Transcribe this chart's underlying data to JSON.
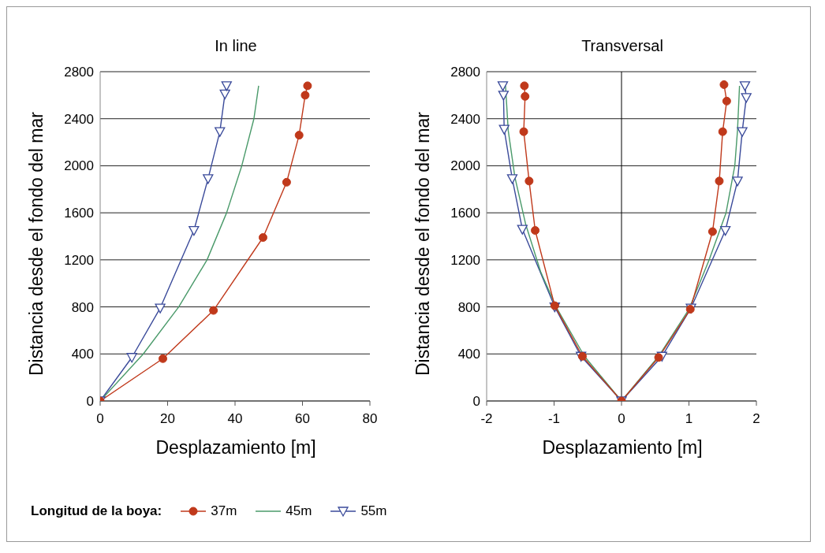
{
  "chart_data": [
    {
      "type": "line",
      "title": "In line",
      "xlabel": "Desplazamiento [m]",
      "ylabel": "Distancia desde el fondo del mar",
      "xlim": [
        0,
        80
      ],
      "xticks": [
        0,
        20,
        40,
        60,
        80
      ],
      "ylim": [
        0,
        2800
      ],
      "yticks": [
        0,
        400,
        800,
        1200,
        1600,
        2000,
        2400,
        2800
      ],
      "grid": "y",
      "legend": "bottom",
      "legend_title": "Longitud de la boya:",
      "line_style": "solid",
      "series": [
        {
          "name": "37m",
          "color": "#c0391b",
          "marker": "circle",
          "x": [
            0,
            18.6,
            33.6,
            48.3,
            55.3,
            59,
            60.8,
            61.5
          ],
          "values": [
            0,
            360,
            770,
            1390,
            1860,
            2260,
            2600,
            2680
          ]
        },
        {
          "name": "45m",
          "color": "#4a9a6a",
          "marker": "none",
          "x": [
            0,
            12.8,
            23.3,
            31.7,
            37.5,
            42,
            45.6,
            47
          ],
          "values": [
            0,
            400,
            800,
            1200,
            1600,
            2000,
            2400,
            2680
          ]
        },
        {
          "name": "55m",
          "color": "#3a4a9a",
          "marker": "triangle",
          "x": [
            0,
            9.4,
            17.8,
            27.8,
            32,
            35.5,
            37,
            37.5
          ],
          "values": [
            0,
            370,
            790,
            1450,
            1890,
            2290,
            2610,
            2680
          ]
        }
      ]
    },
    {
      "type": "line",
      "title": "Transversal",
      "xlabel": "Desplazamiento [m]",
      "ylabel": "Distancia desde el fondo del mar",
      "xlim": [
        -2,
        2
      ],
      "xticks": [
        -2,
        -1,
        0,
        1,
        2
      ],
      "ylim": [
        0,
        2800
      ],
      "yticks": [
        0,
        400,
        800,
        1200,
        1600,
        2000,
        2400,
        2800
      ],
      "grid": "y",
      "line_style": "solid",
      "ref_lines": [
        {
          "axis": "x",
          "value": 0,
          "color": "#000000"
        }
      ],
      "series": [
        {
          "color": "#c0391b",
          "marker": "circle",
          "x": [
            -1.44,
            -1.43,
            -1.45,
            -1.37,
            -1.28,
            -0.99,
            -0.58,
            0,
            0.55,
            1.02,
            1.35,
            1.45,
            1.5,
            1.56,
            1.52
          ],
          "values": [
            2680,
            2590,
            2290,
            1870,
            1450,
            810,
            380,
            0,
            370,
            780,
            1440,
            1870,
            2290,
            2550,
            2690
          ]
        },
        {
          "color": "#4a9a6a",
          "marker": "none",
          "x": [
            -1.72,
            -1.68,
            -1.58,
            -1.42,
            -1.2,
            -0.97,
            -0.55,
            0,
            0.55,
            1,
            1.3,
            1.55,
            1.68,
            1.72,
            1.75
          ],
          "values": [
            2680,
            2300,
            1900,
            1500,
            1100,
            800,
            380,
            0,
            380,
            780,
            1200,
            1600,
            2000,
            2300,
            2680
          ]
        },
        {
          "color": "#3a4a9a",
          "marker": "triangle",
          "x": [
            -1.76,
            -1.75,
            -1.74,
            -1.62,
            -1.47,
            -0.99,
            -0.6,
            0,
            0.6,
            1.03,
            1.54,
            1.72,
            1.79,
            1.85,
            1.83
          ],
          "values": [
            2680,
            2600,
            2310,
            1890,
            1460,
            800,
            380,
            0,
            380,
            790,
            1450,
            1870,
            2290,
            2580,
            2680
          ]
        }
      ]
    }
  ]
}
